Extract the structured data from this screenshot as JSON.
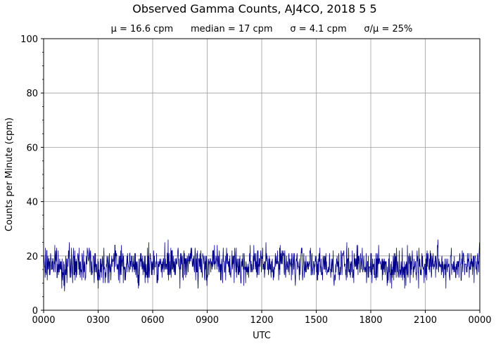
{
  "chart_data": {
    "type": "line",
    "title": "Observed Gamma Counts, AJ4CO, 2018 5 5",
    "subtitle": "μ = 16.6 cpm      median = 17 cpm      σ = 4.1 cpm      σ/μ = 25%",
    "xlabel": "UTC",
    "ylabel": "Counts per Minute (cpm)",
    "xlim": [
      0,
      24
    ],
    "ylim": [
      0,
      100
    ],
    "x_ticks": [
      0,
      3,
      6,
      9,
      12,
      15,
      18,
      21,
      24
    ],
    "x_tick_labels": [
      "0000",
      "0300",
      "0600",
      "0900",
      "1200",
      "1500",
      "1800",
      "2100",
      "0000"
    ],
    "y_ticks": [
      0,
      20,
      40,
      60,
      80,
      100
    ],
    "y_tick_labels": [
      "0",
      "20",
      "40",
      "60",
      "80",
      "100"
    ],
    "grid": true,
    "line_color": "#00008b",
    "series": [
      {
        "x_unit": "hours UTC",
        "x": [
          0,
          0.5,
          1,
          1.5,
          2,
          2.5,
          3,
          3.5,
          4,
          4.5,
          5,
          5.5,
          6,
          6.5,
          7,
          7.5,
          8,
          8.5,
          9,
          9.5,
          10,
          10.5,
          11,
          11.5,
          12,
          12.5,
          13,
          13.5,
          14,
          14.5,
          15,
          15.5,
          16,
          16.5,
          17,
          17.5,
          18,
          18.5,
          19,
          19.5,
          20,
          20.5,
          21,
          21.5,
          22,
          22.5,
          23,
          23.5,
          24
        ],
        "values": [
          16,
          18,
          15,
          17,
          16,
          19,
          15,
          17,
          18,
          16,
          17,
          15,
          18,
          16,
          17,
          16,
          19,
          16,
          17,
          18,
          16,
          17,
          16,
          18,
          17,
          16,
          19,
          17,
          16,
          18,
          15,
          17,
          16,
          17,
          16,
          18,
          16,
          17,
          15,
          17,
          16,
          17,
          16,
          18,
          16,
          17,
          16,
          18,
          17
        ]
      }
    ]
  }
}
